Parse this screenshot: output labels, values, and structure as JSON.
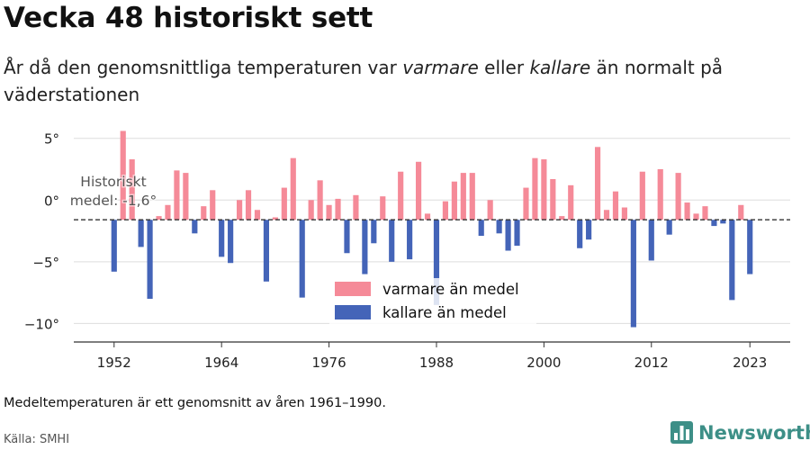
{
  "header": {
    "title": "Vecka 48 historiskt sett",
    "subtitle_parts": [
      {
        "text": "År då den genomsnittliga temperaturen var ",
        "italic": false
      },
      {
        "text": "varmare",
        "italic": true
      },
      {
        "text": " eller ",
        "italic": false
      },
      {
        "text": "kallare",
        "italic": true
      },
      {
        "text": " än normalt på väderstationen",
        "italic": false
      }
    ]
  },
  "footer": {
    "note": "Medeltemperaturen är ett genomsnitt av åren 1961–1990.",
    "source": "Källa: SMHI",
    "brand": "Newsworthy"
  },
  "colors": {
    "warmer": "#f58a98",
    "colder": "#4464b8",
    "grid": "#dddddd",
    "mean_line": "#333333",
    "brand": "#3d8f87"
  },
  "chart_data": {
    "type": "bar",
    "baseline": -1.6,
    "baseline_label": [
      "Historiskt",
      "medel: -1,6°"
    ],
    "ylim": [
      -11.5,
      6
    ],
    "xlim": [
      1947.5,
      2027.5
    ],
    "yticks": [
      5,
      0,
      -5,
      -10
    ],
    "ytick_labels": [
      "5°",
      "0°",
      "−5°",
      "−10°"
    ],
    "xticks": [
      1952,
      1964,
      1976,
      1988,
      2000,
      2012,
      2023
    ],
    "legend": {
      "placement": "bottom-center",
      "entries": [
        {
          "label": "varmare än medel",
          "key": "warmer"
        },
        {
          "label": "kallare än medel",
          "key": "colder"
        }
      ]
    },
    "x": [
      1952,
      1953,
      1954,
      1955,
      1956,
      1957,
      1958,
      1959,
      1960,
      1961,
      1962,
      1963,
      1964,
      1965,
      1966,
      1967,
      1968,
      1969,
      1970,
      1971,
      1972,
      1973,
      1974,
      1975,
      1976,
      1977,
      1978,
      1979,
      1980,
      1981,
      1982,
      1983,
      1984,
      1985,
      1986,
      1987,
      1988,
      1989,
      1990,
      1991,
      1992,
      1993,
      1994,
      1995,
      1996,
      1997,
      1998,
      1999,
      2000,
      2001,
      2002,
      2003,
      2004,
      2005,
      2006,
      2007,
      2008,
      2009,
      2010,
      2011,
      2012,
      2013,
      2014,
      2015,
      2016,
      2017,
      2018,
      2019,
      2020,
      2021,
      2022,
      2023
    ],
    "values": [
      -5.8,
      5.6,
      3.3,
      -3.8,
      -8.0,
      -1.3,
      -0.4,
      2.4,
      2.2,
      -2.7,
      -0.5,
      0.8,
      -4.6,
      -5.1,
      0.0,
      0.8,
      -0.8,
      -6.6,
      -1.4,
      1.0,
      3.4,
      -7.9,
      0.0,
      1.6,
      -0.4,
      0.1,
      -4.3,
      0.4,
      -6.0,
      -3.5,
      0.3,
      -5.0,
      2.3,
      -4.8,
      3.1,
      -1.1,
      -8.5,
      -0.1,
      1.5,
      2.2,
      2.2,
      -2.9,
      0.0,
      -2.7,
      -4.1,
      -3.7,
      1.0,
      3.4,
      3.3,
      1.7,
      -1.3,
      1.2,
      -3.9,
      -3.2,
      4.3,
      -0.8,
      0.7,
      -0.6,
      -10.3,
      2.3,
      -4.9,
      2.5,
      -2.8,
      2.2,
      -0.2,
      -1.1,
      -0.5,
      -2.1,
      -1.9,
      -8.1,
      -0.4,
      -6.0
    ]
  }
}
